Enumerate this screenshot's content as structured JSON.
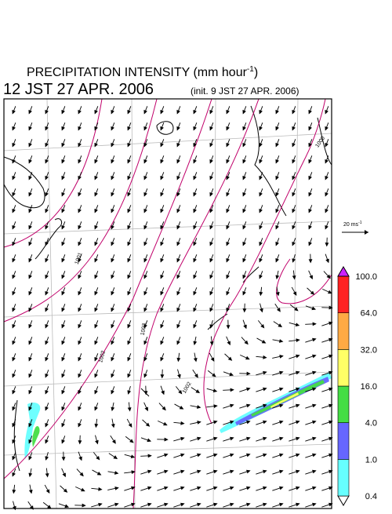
{
  "header": {
    "title": "PRECIPITATION INTENSITY (mm hour",
    "title_exponent": "-1",
    "title_close": ")",
    "valid_time": "12 JST 27 APR. 2006",
    "init_time": "(init. 9 JST 27 APR. 2006)"
  },
  "vector_reference": {
    "label": "20 ms",
    "exponent": "-1"
  },
  "colorbar": {
    "levels": [
      0.4,
      {
        "value": 1,
        "label": "1.0"
      },
      {
        "value": 4,
        "label": "4.0"
      },
      {
        "value": 16,
        "label": "16.0"
      },
      {
        "value": 32,
        "label": "32.0"
      },
      {
        "value": 64,
        "label": "64.0"
      },
      {
        "value": 100,
        "label": "100.0"
      }
    ],
    "colors": [
      "#ffffff",
      "#66ffff",
      "#6666ff",
      "#44dd44",
      "#ffff66",
      "#ffaa44",
      "#ff2222",
      "#cc22ff"
    ]
  },
  "isobar_labels": [
    "1001",
    "1002",
    "1003",
    "1002",
    "1000"
  ]
}
